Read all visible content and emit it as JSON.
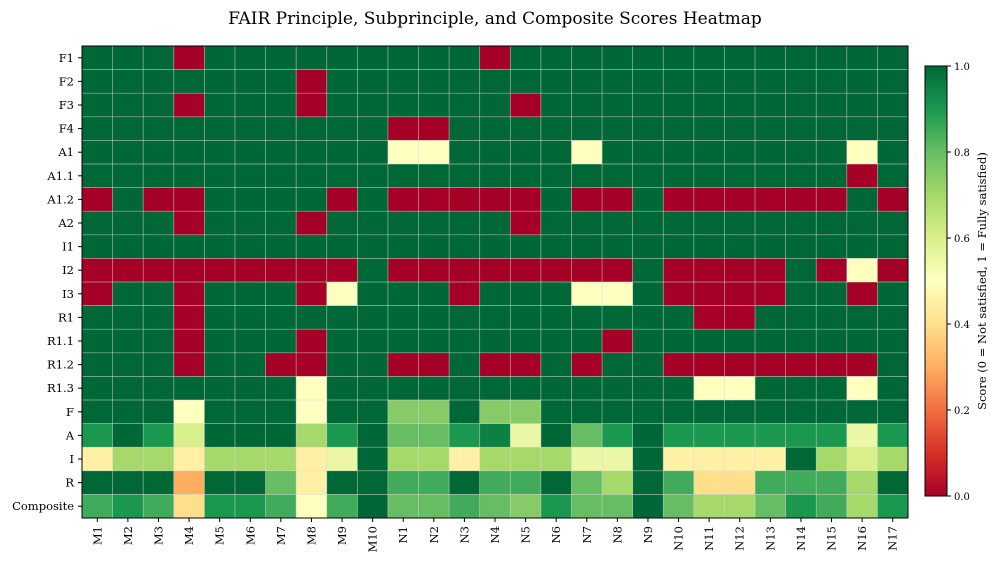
{
  "chart_data": {
    "type": "heatmap",
    "title": "FAIR Principle, Subprinciple, and Composite Scores Heatmap",
    "xlabel": "",
    "ylabel": "",
    "x_categories": [
      "M1",
      "M2",
      "M3",
      "M4",
      "M5",
      "M6",
      "M7",
      "M8",
      "M9",
      "M10",
      "N1",
      "N2",
      "N3",
      "N4",
      "N5",
      "N6",
      "N7",
      "N8",
      "N9",
      "N10",
      "N11",
      "N12",
      "N13",
      "N14",
      "N15",
      "N16",
      "N17"
    ],
    "y_categories": [
      "F1",
      "F2",
      "F3",
      "F4",
      "A1",
      "A1.1",
      "A1.2",
      "A2",
      "I1",
      "I2",
      "I3",
      "R1",
      "R1.1",
      "R1.2",
      "R1.3",
      "F",
      "A",
      "I",
      "R",
      "Composite"
    ],
    "values": [
      [
        1,
        1,
        1,
        0,
        1,
        1,
        1,
        1,
        1,
        1,
        1,
        1,
        1,
        0,
        1,
        1,
        1,
        1,
        1,
        1,
        1,
        1,
        1,
        1,
        1,
        1,
        1
      ],
      [
        1,
        1,
        1,
        1,
        1,
        1,
        1,
        0,
        1,
        1,
        1,
        1,
        1,
        1,
        1,
        1,
        1,
        1,
        1,
        1,
        1,
        1,
        1,
        1,
        1,
        1,
        1
      ],
      [
        1,
        1,
        1,
        0,
        1,
        1,
        1,
        0,
        1,
        1,
        1,
        1,
        1,
        1,
        0,
        1,
        1,
        1,
        1,
        1,
        1,
        1,
        1,
        1,
        1,
        1,
        1
      ],
      [
        1,
        1,
        1,
        1,
        1,
        1,
        1,
        1,
        1,
        1,
        0,
        0,
        1,
        1,
        1,
        1,
        1,
        1,
        1,
        1,
        1,
        1,
        1,
        1,
        1,
        1,
        1
      ],
      [
        1,
        1,
        1,
        1,
        1,
        1,
        1,
        1,
        1,
        1,
        0.5,
        0.5,
        1,
        1,
        1,
        1,
        0.5,
        1,
        1,
        1,
        1,
        1,
        1,
        1,
        1,
        0.5,
        1
      ],
      [
        1,
        1,
        1,
        1,
        1,
        1,
        1,
        1,
        1,
        1,
        1,
        1,
        1,
        1,
        1,
        1,
        1,
        1,
        1,
        1,
        1,
        1,
        1,
        1,
        1,
        0,
        1
      ],
      [
        0,
        1,
        0,
        0,
        1,
        1,
        1,
        1,
        0,
        1,
        0,
        0,
        0,
        0,
        0,
        1,
        0,
        0,
        1,
        0,
        0,
        0,
        0,
        0,
        0,
        1,
        0
      ],
      [
        1,
        1,
        1,
        0,
        1,
        1,
        1,
        0,
        1,
        1,
        1,
        1,
        1,
        1,
        0,
        1,
        1,
        1,
        1,
        1,
        1,
        1,
        1,
        1,
        1,
        1,
        1
      ],
      [
        1,
        1,
        1,
        1,
        1,
        1,
        1,
        1,
        1,
        1,
        1,
        1,
        1,
        1,
        1,
        1,
        1,
        1,
        1,
        1,
        1,
        1,
        1,
        1,
        1,
        1,
        1
      ],
      [
        0,
        0,
        0,
        0,
        0,
        0,
        0,
        0,
        0,
        1,
        0,
        0,
        0,
        0,
        0,
        0,
        0,
        0,
        1,
        0,
        0,
        0,
        0,
        1,
        0,
        0.5,
        0
      ],
      [
        0,
        1,
        1,
        0,
        1,
        1,
        1,
        0,
        0.5,
        1,
        1,
        1,
        0,
        1,
        1,
        1,
        0.5,
        0.5,
        1,
        0,
        0,
        0,
        0,
        1,
        1,
        0,
        1
      ],
      [
        1,
        1,
        1,
        0,
        1,
        1,
        1,
        1,
        1,
        1,
        1,
        1,
        1,
        1,
        1,
        1,
        1,
        1,
        1,
        1,
        0,
        0,
        1,
        1,
        1,
        1,
        1
      ],
      [
        1,
        1,
        1,
        0,
        1,
        1,
        1,
        0,
        1,
        1,
        1,
        1,
        1,
        1,
        1,
        1,
        1,
        0,
        1,
        1,
        1,
        1,
        1,
        1,
        1,
        1,
        1
      ],
      [
        1,
        1,
        1,
        0,
        1,
        1,
        0,
        0,
        1,
        1,
        0,
        0,
        1,
        0,
        0,
        1,
        0,
        1,
        1,
        0,
        0,
        0,
        0,
        0,
        0,
        0,
        1
      ],
      [
        1,
        1,
        1,
        1,
        1,
        1,
        1,
        0.5,
        1,
        1,
        1,
        1,
        1,
        1,
        1,
        1,
        1,
        1,
        1,
        1,
        0.5,
        0.5,
        1,
        1,
        1,
        0.5,
        1
      ],
      [
        1,
        1,
        1,
        0.5,
        1,
        1,
        1,
        0.5,
        1,
        1,
        0.75,
        0.75,
        1,
        0.75,
        0.75,
        1,
        1,
        1,
        1,
        1,
        1,
        1,
        1,
        1,
        1,
        1,
        1
      ],
      [
        0.9,
        1,
        0.9,
        0.6,
        1,
        1,
        1,
        0.7,
        0.9,
        1,
        0.8,
        0.8,
        0.9,
        0.95,
        0.55,
        1,
        0.8,
        0.9,
        1,
        0.9,
        0.9,
        0.9,
        0.9,
        0.9,
        0.9,
        0.55,
        0.9
      ],
      [
        0.45,
        0.7,
        0.7,
        0.45,
        0.7,
        0.7,
        0.7,
        0.45,
        0.55,
        1,
        0.7,
        0.7,
        0.45,
        0.7,
        0.7,
        0.7,
        0.55,
        0.55,
        1,
        0.45,
        0.45,
        0.45,
        0.45,
        1,
        0.7,
        0.6,
        0.7
      ],
      [
        1,
        1,
        1,
        0.3,
        1,
        1,
        0.8,
        0.45,
        1,
        1,
        0.85,
        0.85,
        1,
        0.85,
        0.85,
        1,
        0.8,
        0.7,
        1,
        0.85,
        0.4,
        0.4,
        0.85,
        0.85,
        0.85,
        0.7,
        1
      ],
      [
        0.85,
        0.9,
        0.85,
        0.4,
        0.9,
        0.9,
        0.85,
        0.5,
        0.85,
        1,
        0.8,
        0.8,
        0.85,
        0.8,
        0.75,
        0.9,
        0.8,
        0.8,
        1,
        0.8,
        0.7,
        0.7,
        0.8,
        0.9,
        0.85,
        0.7,
        0.9
      ]
    ],
    "colormap": "RdYlGn",
    "colors": [
      "#a50026",
      "#d73027",
      "#f46d43",
      "#fdae61",
      "#fee08b",
      "#ffffbf",
      "#d9ef8b",
      "#a6d96a",
      "#66bd63",
      "#1a9850",
      "#006837"
    ],
    "grid_color": "#d9d9d9",
    "vmin": 0,
    "vmax": 1,
    "colorbar": {
      "label": "Score (0 = Not satisfied, 1 = Fully satisfied)",
      "ticks": [
        0.0,
        0.2,
        0.4,
        0.6,
        0.8,
        1.0
      ],
      "tick_labels": [
        "0.0",
        "0.2",
        "0.4",
        "0.6",
        "0.8",
        "1.0"
      ]
    }
  }
}
